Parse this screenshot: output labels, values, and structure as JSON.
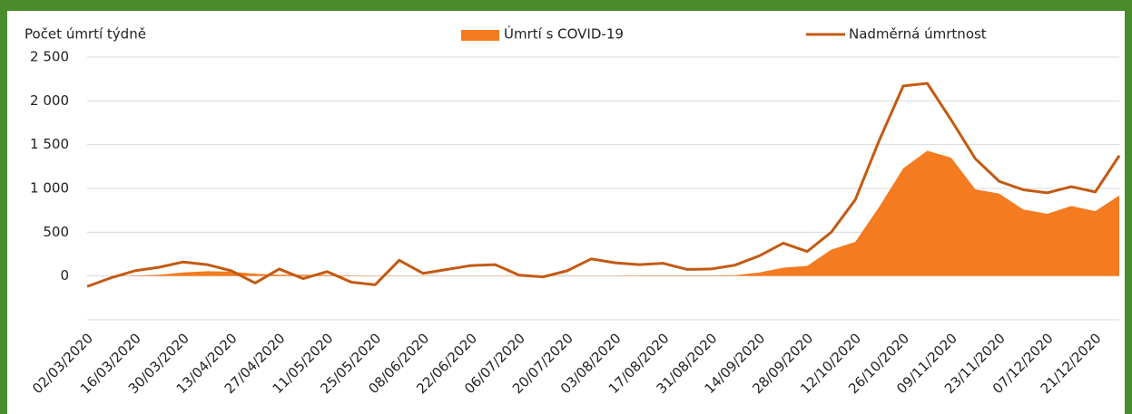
{
  "chart_data": {
    "type": "line",
    "y_label": "Počet úmrtí týdně",
    "categories": [
      "02/03/2020",
      null,
      "16/03/2020",
      null,
      "30/03/2020",
      null,
      "13/04/2020",
      null,
      "27/04/2020",
      null,
      "11/05/2020",
      null,
      "25/05/2020",
      null,
      "08/06/2020",
      null,
      "22/06/2020",
      null,
      "06/07/2020",
      null,
      "20/07/2020",
      null,
      "03/08/2020",
      null,
      "17/08/2020",
      null,
      "31/08/2020",
      null,
      "14/09/2020",
      null,
      "28/09/2020",
      null,
      "12/10/2020",
      null,
      "26/10/2020",
      null,
      "09/11/2020",
      null,
      "23/11/2020",
      null,
      "07/12/2020",
      null,
      "21/12/2020",
      null
    ],
    "series": [
      {
        "name": "Úmrtí s COVID-19",
        "type": "area",
        "color": "#f47b20",
        "values": [
          0,
          0,
          5,
          15,
          40,
          55,
          50,
          25,
          15,
          15,
          10,
          5,
          3,
          3,
          3,
          3,
          3,
          3,
          3,
          3,
          3,
          3,
          3,
          5,
          5,
          5,
          5,
          10,
          40,
          95,
          115,
          300,
          390,
          790,
          1230,
          1430,
          1350,
          990,
          940,
          760,
          710,
          800,
          740,
          920
        ]
      },
      {
        "name": "Nadměrná úmrtnost",
        "type": "line",
        "color": "#c35a12",
        "values": [
          -120,
          -20,
          60,
          100,
          160,
          130,
          60,
          -80,
          80,
          -30,
          50,
          -70,
          -100,
          180,
          30,
          75,
          120,
          130,
          10,
          -10,
          60,
          195,
          150,
          130,
          145,
          75,
          80,
          125,
          230,
          375,
          280,
          500,
          870,
          1550,
          2170,
          2200,
          1780,
          1340,
          1080,
          985,
          950,
          1020,
          960,
          1375
        ]
      }
    ],
    "ylim": [
      -500,
      2500
    ],
    "yticks": [
      {
        "value": 0,
        "label": "0"
      },
      {
        "value": 500,
        "label": "500"
      },
      {
        "value": 1000,
        "label": "1 000"
      },
      {
        "value": 1500,
        "label": "1 500"
      },
      {
        "value": 2000,
        "label": "2 000"
      },
      {
        "value": 2500,
        "label": "2 500"
      }
    ],
    "grid": true
  }
}
